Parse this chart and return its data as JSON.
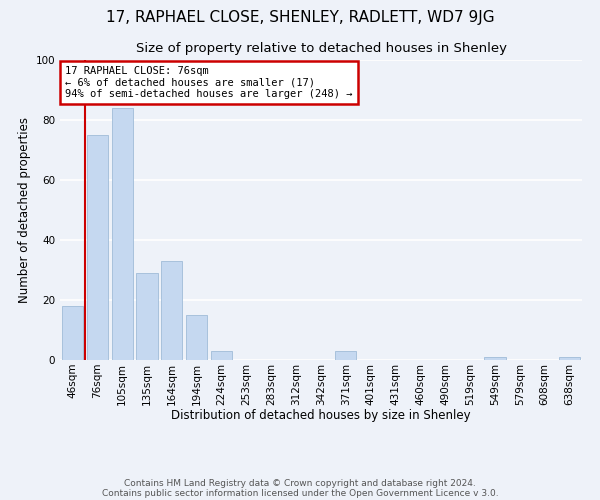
{
  "title1": "17, RAPHAEL CLOSE, SHENLEY, RADLETT, WD7 9JG",
  "title2": "Size of property relative to detached houses in Shenley",
  "xlabel": "Distribution of detached houses by size in Shenley",
  "ylabel": "Number of detached properties",
  "footer1": "Contains HM Land Registry data © Crown copyright and database right 2024.",
  "footer2": "Contains public sector information licensed under the Open Government Licence v 3.0.",
  "annotation_line1": "17 RAPHAEL CLOSE: 76sqm",
  "annotation_line2": "← 6% of detached houses are smaller (17)",
  "annotation_line3": "94% of semi-detached houses are larger (248) →",
  "bar_labels": [
    "46sqm",
    "76sqm",
    "105sqm",
    "135sqm",
    "164sqm",
    "194sqm",
    "224sqm",
    "253sqm",
    "283sqm",
    "312sqm",
    "342sqm",
    "371sqm",
    "401sqm",
    "431sqm",
    "460sqm",
    "490sqm",
    "519sqm",
    "549sqm",
    "579sqm",
    "608sqm",
    "638sqm"
  ],
  "bar_values": [
    18,
    75,
    84,
    29,
    33,
    15,
    3,
    0,
    0,
    0,
    0,
    3,
    0,
    0,
    0,
    0,
    0,
    1,
    0,
    0,
    1
  ],
  "bar_color": "#c5d8f0",
  "bar_edge_color": "#a0bcd8",
  "highlight_bar_index": 1,
  "highlight_line_color": "#cc0000",
  "annotation_box_edge_color": "#cc0000",
  "background_color": "#eef2f9",
  "plot_bg_color": "#eef2f9",
  "ylim": [
    0,
    100
  ],
  "yticks": [
    0,
    20,
    40,
    60,
    80,
    100
  ],
  "grid_color": "#ffffff",
  "title_fontsize": 11,
  "subtitle_fontsize": 9.5,
  "axis_label_fontsize": 8.5,
  "tick_fontsize": 7.5,
  "annotation_fontsize": 7.5,
  "footer_fontsize": 6.5
}
